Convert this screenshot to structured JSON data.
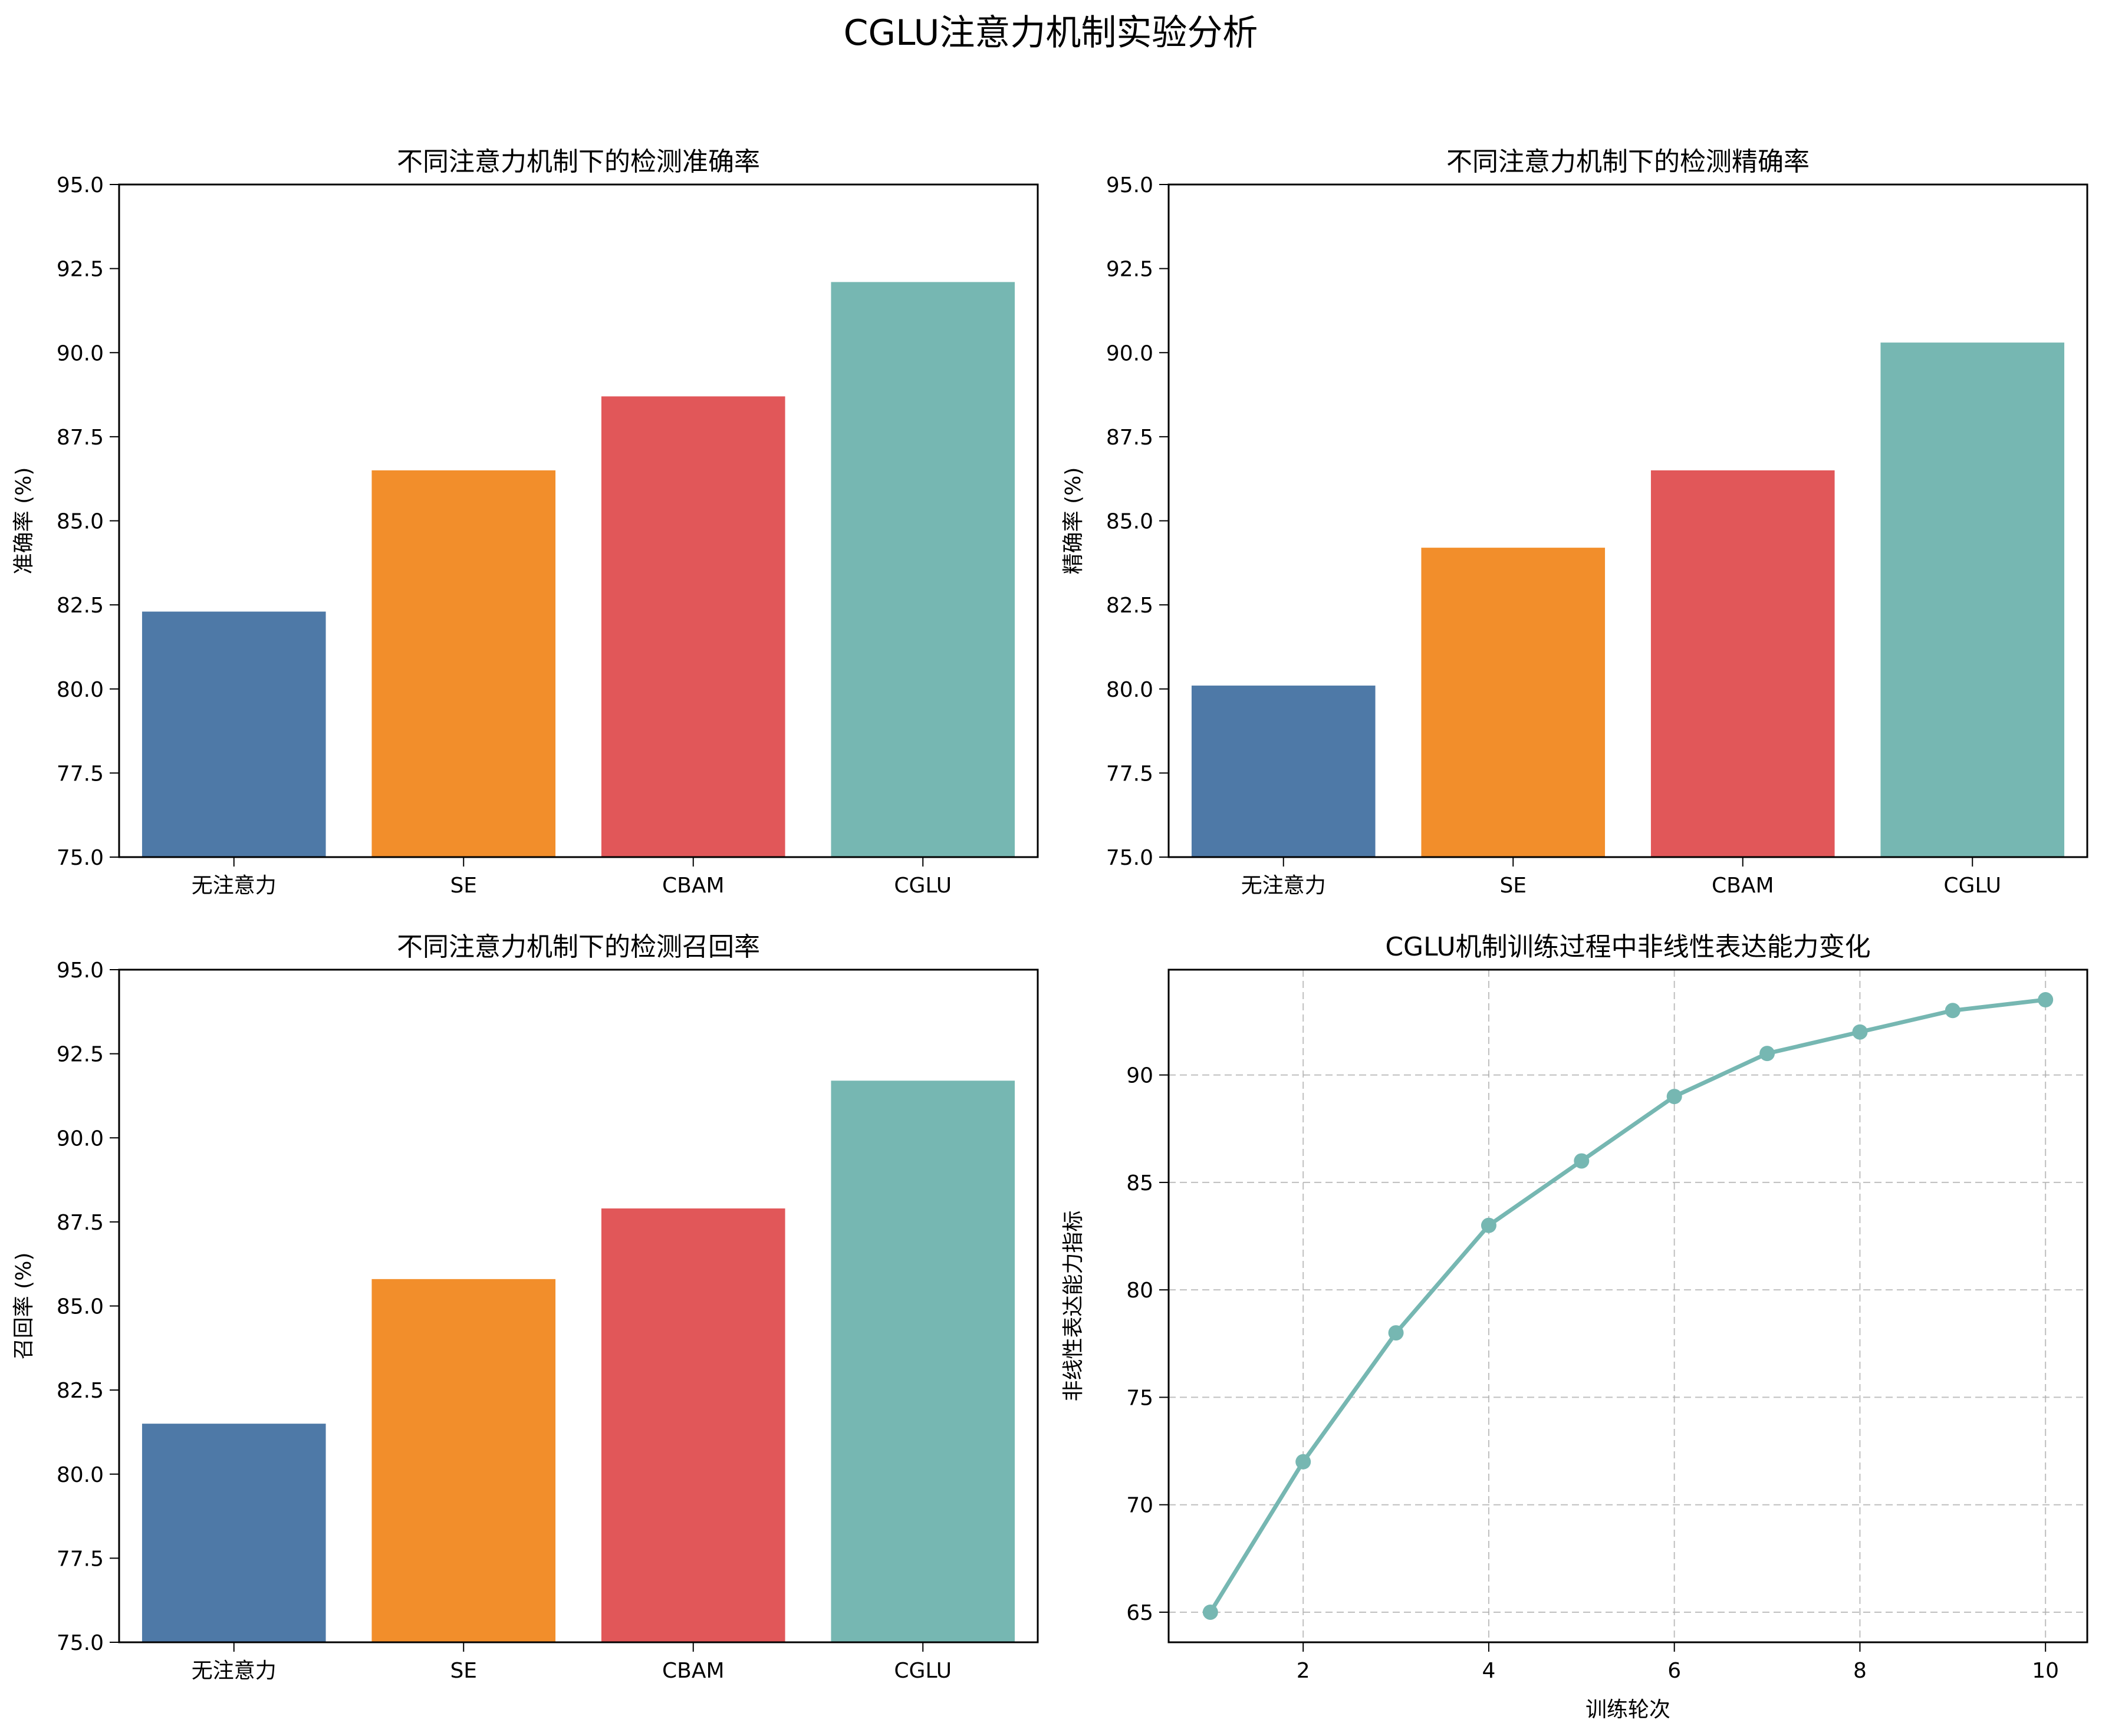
{
  "suptitle": "CGLU注意力机制实验分析",
  "colors": {
    "bars": [
      "#4e79a7",
      "#f28e2b",
      "#e15759",
      "#76b7b2"
    ],
    "line": "#76b7b2",
    "grid": "#b0b0b0",
    "axis": "#000000"
  },
  "chart_data": [
    {
      "type": "bar",
      "title": "不同注意力机制下的检测准确率",
      "xlabel": "",
      "ylabel": "准确率 (%)",
      "categories": [
        "无注意力",
        "SE",
        "CBAM",
        "CGLU"
      ],
      "values": [
        82.3,
        86.5,
        88.7,
        92.1
      ],
      "ylim": [
        75,
        95
      ],
      "yticks": [
        "75.0",
        "77.5",
        "80.0",
        "82.5",
        "85.0",
        "87.5",
        "90.0",
        "92.5",
        "95.0"
      ],
      "grid": false
    },
    {
      "type": "bar",
      "title": "不同注意力机制下的检测精确率",
      "xlabel": "",
      "ylabel": "精确率 (%)",
      "categories": [
        "无注意力",
        "SE",
        "CBAM",
        "CGLU"
      ],
      "values": [
        80.1,
        84.2,
        86.5,
        90.3
      ],
      "ylim": [
        75,
        95
      ],
      "yticks": [
        "75.0",
        "77.5",
        "80.0",
        "82.5",
        "85.0",
        "87.5",
        "90.0",
        "92.5",
        "95.0"
      ],
      "grid": false
    },
    {
      "type": "bar",
      "title": "不同注意力机制下的检测召回率",
      "xlabel": "",
      "ylabel": "召回率 (%)",
      "categories": [
        "无注意力",
        "SE",
        "CBAM",
        "CGLU"
      ],
      "values": [
        81.5,
        85.8,
        87.9,
        91.7
      ],
      "ylim": [
        75,
        95
      ],
      "yticks": [
        "75.0",
        "77.5",
        "80.0",
        "82.5",
        "85.0",
        "87.5",
        "90.0",
        "92.5",
        "95.0"
      ],
      "grid": false
    },
    {
      "type": "line",
      "title": "CGLU机制训练过程中非线性表达能力变化",
      "xlabel": "训练轮次",
      "ylabel": "非线性表达能力指标",
      "x": [
        1,
        2,
        3,
        4,
        5,
        6,
        7,
        8,
        9,
        10
      ],
      "y": [
        65,
        72,
        78,
        83,
        86,
        89,
        91,
        92,
        93,
        93.5
      ],
      "xlim": [
        0.55,
        10.45
      ],
      "ylim": [
        63.6,
        94.9
      ],
      "xticks": [
        "2",
        "4",
        "6",
        "8",
        "10"
      ],
      "yticks": [
        "65",
        "70",
        "75",
        "80",
        "85",
        "90"
      ],
      "grid": true,
      "markers": true
    }
  ]
}
